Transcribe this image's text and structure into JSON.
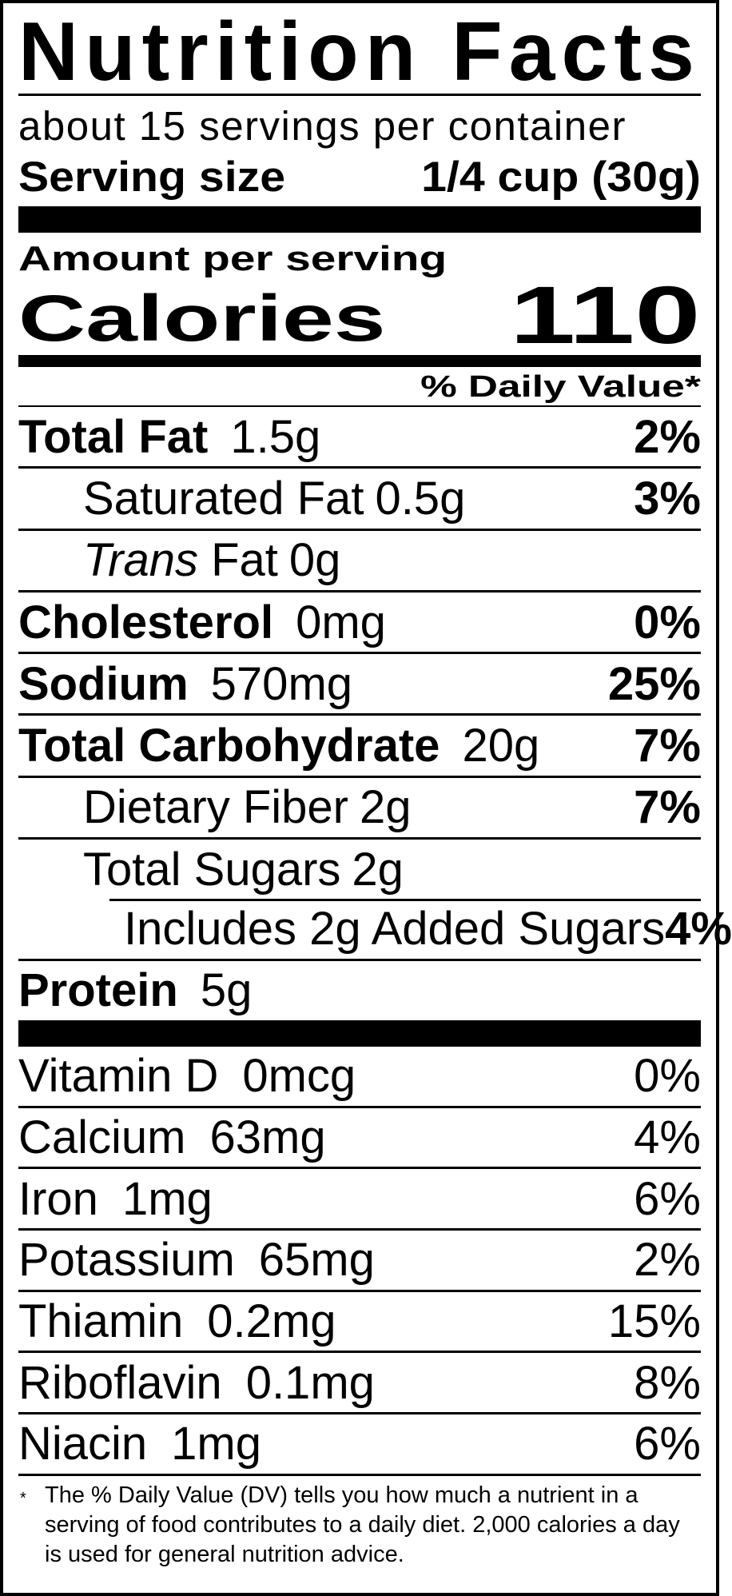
{
  "title": "Nutrition Facts",
  "servings_per_container": "about 15 servings per container",
  "serving_size": {
    "label": "Serving size",
    "value": "1/4 cup (30g)"
  },
  "amount_per_serving": "Amount per serving",
  "calories": {
    "label": "Calories",
    "value": "110"
  },
  "daily_value_header": "% Daily Value*",
  "nutrients": [
    {
      "label": "Total Fat",
      "amount": "1.5g",
      "dv": "2%",
      "bold": true,
      "indent": 0
    },
    {
      "label": "Saturated Fat",
      "amount": "0.5g",
      "dv": "3%",
      "bold": false,
      "indent": 1
    },
    {
      "label_italic": "Trans",
      "label": "Fat",
      "amount": "0g",
      "dv": "",
      "bold": false,
      "indent": 1
    },
    {
      "label": "Cholesterol",
      "amount": "0mg",
      "dv": "0%",
      "bold": true,
      "indent": 0
    },
    {
      "label": "Sodium",
      "amount": "570mg",
      "dv": "25%",
      "bold": true,
      "indent": 0
    },
    {
      "label": "Total Carbohydrate",
      "amount": "20g",
      "dv": "7%",
      "bold": true,
      "indent": 0
    },
    {
      "label": "Dietary Fiber",
      "amount": "2g",
      "dv": "7%",
      "bold": false,
      "indent": 1
    },
    {
      "label": "Total Sugars",
      "amount": "2g",
      "dv": "",
      "bold": false,
      "indent": 1
    },
    {
      "label": "Includes 2g Added Sugars",
      "amount": "",
      "dv": "4%",
      "bold": false,
      "indent": 2
    },
    {
      "label": "Protein",
      "amount": "5g",
      "dv": "",
      "bold": true,
      "indent": 0
    }
  ],
  "vitamins": [
    {
      "label": "Vitamin D",
      "amount": "0mcg",
      "dv": "0%"
    },
    {
      "label": "Calcium",
      "amount": "63mg",
      "dv": "4%"
    },
    {
      "label": "Iron",
      "amount": "1mg",
      "dv": "6%"
    },
    {
      "label": "Potassium",
      "amount": "65mg",
      "dv": "2%"
    },
    {
      "label": "Thiamin",
      "amount": "0.2mg",
      "dv": "15%"
    },
    {
      "label": "Riboflavin",
      "amount": "0.1mg",
      "dv": "8%"
    },
    {
      "label": "Niacin",
      "amount": "1mg",
      "dv": "6%"
    }
  ],
  "footnote": {
    "marker": "*",
    "text": "The % Daily Value (DV) tells you how much a nutrient in a serving of food contributes to a daily diet. 2,000 calories a day is used for general nutrition advice."
  }
}
